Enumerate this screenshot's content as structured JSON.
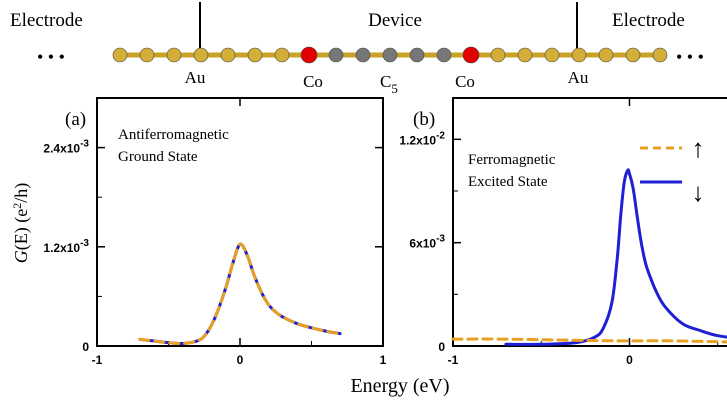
{
  "header": {
    "left_label": "Electrode",
    "center_label": "Device",
    "right_label": "Electrode",
    "atom_labels": {
      "au_left": "Au",
      "co_left": "Co",
      "c5_main": "C",
      "c5_sub": "5",
      "co_right": "Co",
      "au_right": "Au"
    },
    "ellipsis": "• • •",
    "colors": {
      "gold": "#d4af37",
      "co": "#e00000",
      "carbon": "#777777",
      "bond": "#c9a227"
    },
    "chain_sequence": [
      "Au",
      "Au",
      "Au",
      "Au",
      "Au",
      "Au",
      "Au",
      "Co",
      "C",
      "C",
      "C",
      "C",
      "C",
      "Co",
      "Au",
      "Au",
      "Au",
      "Au",
      "Au",
      "Au",
      "Au"
    ]
  },
  "y_axis_label": {
    "G": "G",
    "mid": "(E) (e",
    "sup": "2",
    "end": "/h)"
  },
  "x_axis_label": "Energy (eV)",
  "panels": {
    "a": {
      "tag": "(a)",
      "line1": "Antiferromagnetic",
      "line2": "Ground State",
      "yticks": [
        {
          "mant": "2.4x10",
          "exp": "-3"
        },
        {
          "mant": "1.2x10",
          "exp": "-3"
        },
        {
          "mant": "0",
          "exp": ""
        }
      ],
      "xticks": [
        "-1",
        "0",
        "1"
      ]
    },
    "b": {
      "tag": "(b)",
      "line1": "Ferromagnetic",
      "line2": "Excited State",
      "yticks": [
        {
          "mant": "1.2x10",
          "exp": "-2"
        },
        {
          "mant": "6x10",
          "exp": "-3"
        },
        {
          "mant": "0",
          "exp": ""
        }
      ],
      "xticks": [
        "-1",
        "0"
      ],
      "legend": {
        "up_arrow": "↑",
        "down_arrow": "↓"
      }
    }
  },
  "chart_data": [
    {
      "type": "line",
      "panel": "a",
      "xlim": [
        -1,
        1
      ],
      "ylim": [
        0,
        0.003
      ],
      "series": [
        {
          "color": "#1f1fd6",
          "style": "solid",
          "x": [
            -0.7,
            -0.6,
            -0.5,
            -0.4,
            -0.3,
            -0.25,
            -0.2,
            -0.15,
            -0.1,
            -0.05,
            0.0,
            0.05,
            0.1,
            0.15,
            0.2,
            0.25,
            0.3,
            0.4,
            0.5,
            0.6,
            0.7
          ],
          "y": [
            8e-05,
            6e-05,
            4e-05,
            3e-05,
            6e-05,
            0.00012,
            0.00025,
            0.00045,
            0.0007,
            0.001,
            0.00123,
            0.0011,
            0.00085,
            0.00065,
            0.0005,
            0.00041,
            0.00035,
            0.00027,
            0.00022,
            0.00018,
            0.00015
          ]
        },
        {
          "color": "#e8a020",
          "style": "dashed",
          "x": [
            -0.7,
            -0.6,
            -0.5,
            -0.4,
            -0.3,
            -0.25,
            -0.2,
            -0.15,
            -0.1,
            -0.05,
            0.0,
            0.05,
            0.1,
            0.15,
            0.2,
            0.25,
            0.3,
            0.4,
            0.5,
            0.6,
            0.7
          ],
          "y": [
            8e-05,
            6e-05,
            4e-05,
            3e-05,
            6e-05,
            0.00012,
            0.00025,
            0.00045,
            0.0007,
            0.001,
            0.00123,
            0.0011,
            0.00085,
            0.00065,
            0.0005,
            0.00041,
            0.00035,
            0.00027,
            0.00022,
            0.00018,
            0.00015
          ]
        }
      ]
    },
    {
      "type": "line",
      "panel": "b",
      "xlim": [
        -1,
        0.7
      ],
      "ylim": [
        0,
        0.0144
      ],
      "series": [
        {
          "color": "#1f1fd6",
          "style": "solid",
          "x": [
            -0.7,
            -0.5,
            -0.3,
            -0.2,
            -0.15,
            -0.1,
            -0.07,
            -0.05,
            -0.03,
            -0.01,
            0.0,
            0.02,
            0.04,
            0.06,
            0.08,
            0.1,
            0.15,
            0.2,
            0.3,
            0.4,
            0.5,
            0.65
          ],
          "y": [
            0.0001,
            0.0001,
            0.0002,
            0.0005,
            0.001,
            0.0025,
            0.005,
            0.0075,
            0.0095,
            0.0102,
            0.01,
            0.0092,
            0.0078,
            0.0064,
            0.0053,
            0.0045,
            0.0032,
            0.0023,
            0.0013,
            0.0009,
            0.0006,
            0.0004
          ]
        },
        {
          "color": "#e8a020",
          "style": "dashed",
          "x": [
            -1.0,
            -0.7,
            -0.4,
            -0.1,
            0.2,
            0.5,
            0.7
          ],
          "y": [
            0.0004,
            0.0004,
            0.00035,
            0.0003,
            0.0003,
            0.00025,
            0.0002
          ]
        }
      ]
    }
  ]
}
